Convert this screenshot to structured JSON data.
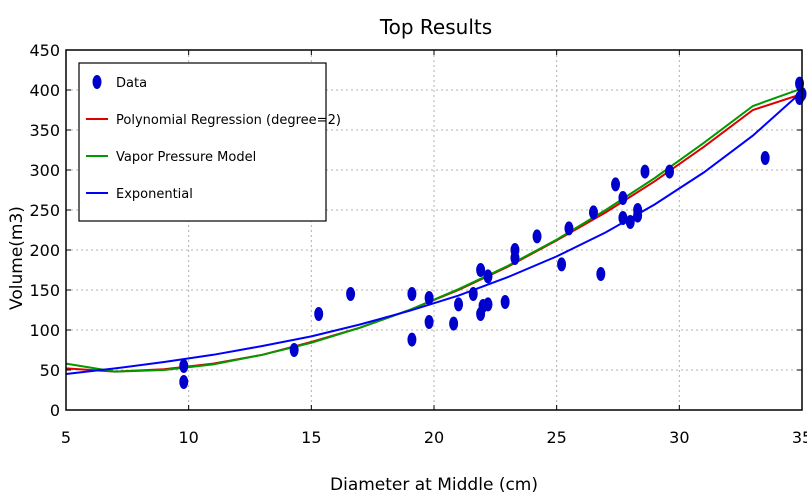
{
  "chart_data": {
    "type": "scatter",
    "title": "Top Results",
    "xlabel": "Diameter at Middle (cm)",
    "ylabel": "Volume(m3)",
    "xlim": [
      5,
      35
    ],
    "ylim": [
      0,
      450
    ],
    "xticks": [
      5,
      10,
      15,
      20,
      25,
      30,
      35
    ],
    "yticks": [
      0,
      50,
      100,
      150,
      200,
      250,
      300,
      350,
      400,
      450
    ],
    "grid": true,
    "legend_position": "top-left",
    "series": [
      {
        "name": "Data",
        "kind": "scatter",
        "color": "#0000cc",
        "x": [
          9.8,
          9.8,
          14.3,
          15.3,
          16.6,
          19.1,
          19.1,
          19.8,
          19.8,
          20.8,
          21.0,
          21.6,
          21.9,
          21.9,
          22.0,
          22.2,
          22.2,
          22.9,
          23.3,
          23.3,
          24.2,
          25.2,
          25.5,
          26.5,
          26.8,
          27.4,
          27.7,
          27.7,
          28.0,
          28.3,
          28.3,
          28.6,
          29.6,
          33.5,
          34.9,
          34.9,
          35.0
        ],
        "y": [
          55,
          35,
          75,
          120,
          145,
          145,
          88,
          140,
          110,
          108,
          132,
          145,
          175,
          120,
          130,
          167,
          132,
          135,
          190,
          200,
          217,
          182,
          227,
          247,
          170,
          282,
          265,
          240,
          235,
          250,
          243,
          298,
          298,
          315,
          408,
          390,
          395
        ]
      },
      {
        "name": "Polynomial Regression (degree=2)",
        "kind": "line",
        "color": "#dd0000",
        "x": [
          5,
          7,
          9,
          11,
          13,
          15,
          17,
          19,
          21,
          23,
          25,
          27,
          29,
          31,
          33,
          35
        ],
        "y": [
          52,
          48,
          51,
          58,
          69,
          85,
          103,
          125,
          150,
          179,
          212,
          247,
          286,
          329,
          375,
          395
        ]
      },
      {
        "name": "Vapor Pressure Model",
        "kind": "line",
        "color": "#009900",
        "x": [
          5,
          7,
          9,
          11,
          13,
          15,
          17,
          19,
          21,
          23,
          25,
          27,
          29,
          31,
          33,
          35
        ],
        "y": [
          58,
          48,
          50,
          57,
          69,
          84,
          103,
          125,
          151,
          180,
          213,
          250,
          290,
          334,
          380,
          402
        ]
      },
      {
        "name": "Exponential",
        "kind": "line",
        "color": "#0000ff",
        "x": [
          5,
          7,
          9,
          11,
          13,
          15,
          17,
          19,
          21,
          23,
          25,
          27,
          29,
          31,
          33,
          35
        ],
        "y": [
          45,
          52,
          60,
          69,
          80,
          92,
          107,
          124,
          143,
          166,
          192,
          222,
          257,
          297,
          343,
          398
        ]
      }
    ]
  }
}
